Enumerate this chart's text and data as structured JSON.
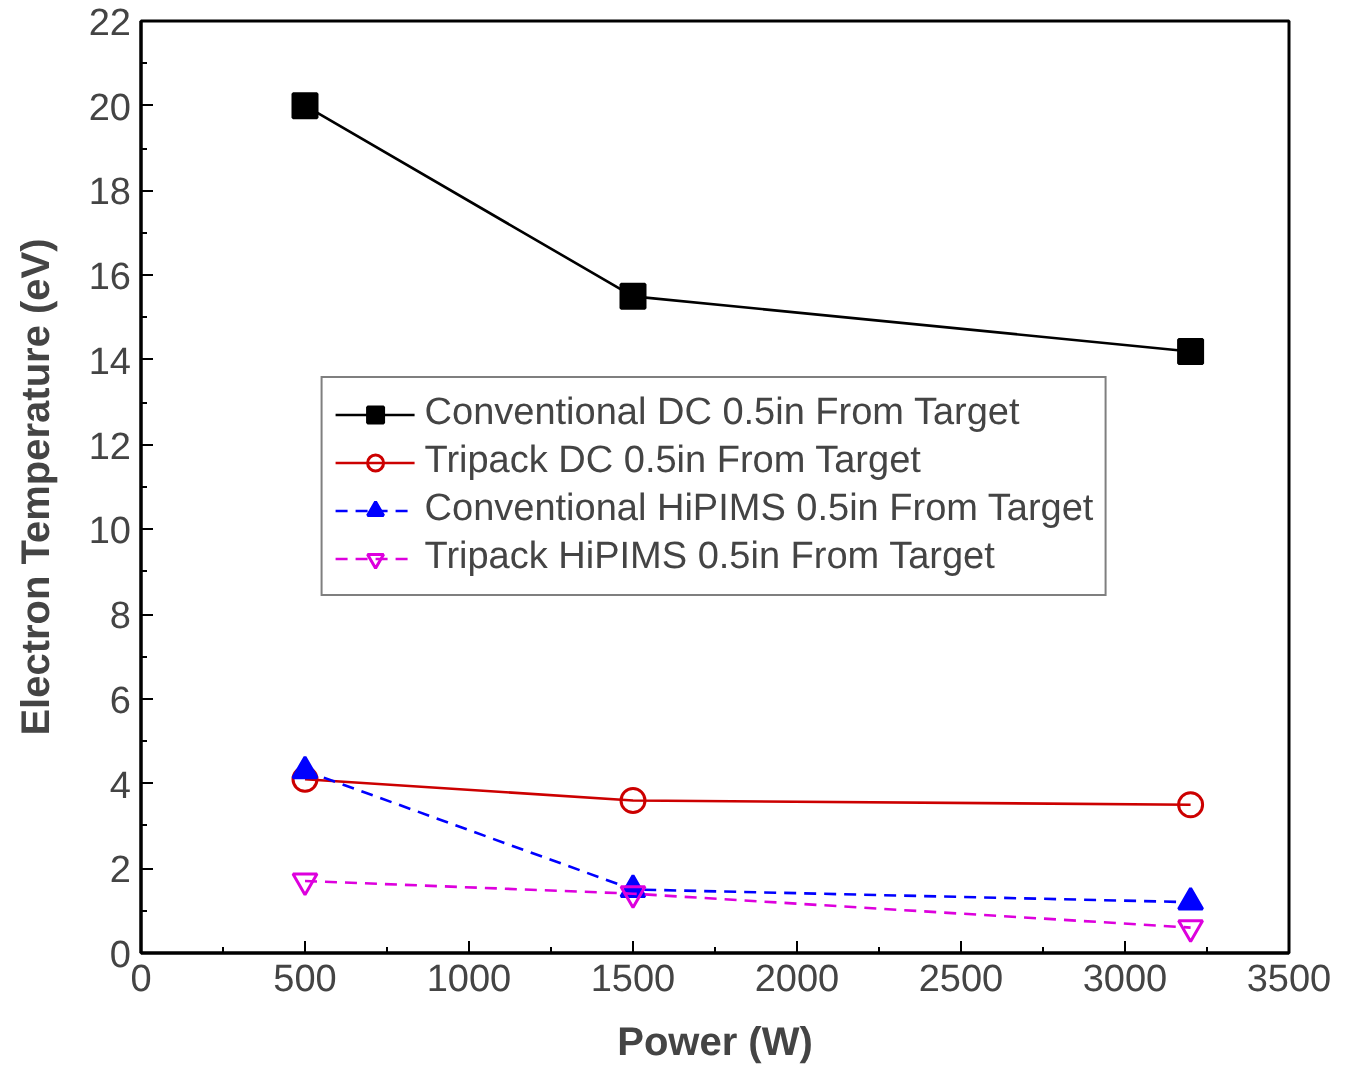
{
  "chart_data": {
    "type": "line",
    "xlabel": "Power (W)",
    "ylabel": "Electron Temperature (eV)",
    "x": [
      500,
      1500,
      3200
    ],
    "series": [
      {
        "name": "Conventional DC 0.5in From Target",
        "color": "#000000",
        "values": [
          20.0,
          15.5,
          14.2
        ],
        "marker": "square",
        "line_style": "solid"
      },
      {
        "name": "Tripack DC 0.5in From Target",
        "color": "#cc0000",
        "values": [
          4.1,
          3.6,
          3.5
        ],
        "marker": "circle",
        "line_style": "solid"
      },
      {
        "name": "Conventional HiPIMS 0.5in From Target",
        "color": "#0000ff",
        "values": [
          4.3,
          1.5,
          1.2
        ],
        "marker": "triangle",
        "line_style": "dashed"
      },
      {
        "name": "Tripack HiPIMS 0.5in From Target",
        "color": "#dd00dd",
        "values": [
          1.7,
          1.4,
          0.6
        ],
        "marker": "triangle",
        "line_style": "dashed"
      }
    ],
    "xlim": [
      0,
      3500
    ],
    "xticks": [
      0,
      500,
      1000,
      1500,
      2000,
      2500,
      3000,
      3500
    ],
    "ylim": [
      0,
      22
    ],
    "yticks": [
      0,
      2,
      4,
      6,
      8,
      10,
      12,
      14,
      16,
      18,
      20,
      22
    ],
    "grid": false,
    "legend": "center"
  }
}
